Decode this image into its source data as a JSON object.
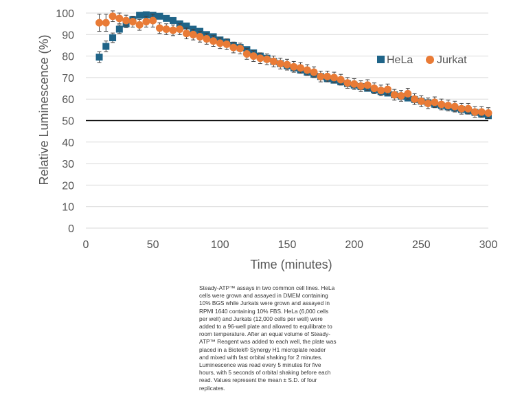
{
  "chart_data": {
    "type": "scatter",
    "title": "",
    "xlabel": "Time (minutes)",
    "ylabel": "Relative Luminescence (%)",
    "xlim": [
      0,
      300
    ],
    "ylim": [
      0,
      100
    ],
    "x_ticks": [
      0,
      50,
      100,
      150,
      200,
      250,
      300
    ],
    "y_ticks": [
      0,
      10,
      20,
      30,
      40,
      50,
      60,
      70,
      80,
      90,
      100
    ],
    "grid": "horizontal",
    "legend_position": "right",
    "reference_line": {
      "y": 50,
      "color": "#000000"
    },
    "series": [
      {
        "name": "HeLa",
        "marker": "square",
        "color": "#1f6488",
        "x": [
          10,
          15,
          20,
          25,
          30,
          35,
          40,
          45,
          50,
          55,
          60,
          65,
          70,
          75,
          80,
          85,
          90,
          95,
          100,
          105,
          110,
          115,
          120,
          125,
          130,
          135,
          140,
          145,
          150,
          155,
          160,
          165,
          170,
          175,
          180,
          185,
          190,
          195,
          200,
          205,
          210,
          215,
          220,
          225,
          230,
          235,
          240,
          245,
          250,
          255,
          260,
          265,
          270,
          275,
          280,
          285,
          290,
          295,
          300
        ],
        "y": [
          79.5,
          84.5,
          88.5,
          92.5,
          95,
          97,
          99,
          99.2,
          99,
          98.5,
          97.5,
          96.5,
          95,
          94,
          92.5,
          91.5,
          90,
          89,
          87.5,
          86.5,
          85,
          84,
          83,
          81.5,
          80,
          79,
          77.5,
          76.5,
          75.5,
          74.5,
          73.5,
          72.5,
          71.5,
          70.5,
          69.5,
          68.8,
          68,
          67.2,
          66.5,
          65.8,
          65,
          64.3,
          63.5,
          62.8,
          62,
          61.3,
          60.5,
          59.8,
          59,
          58.3,
          57.6,
          57,
          56.4,
          55.8,
          55.2,
          54.5,
          53.8,
          53,
          52.3
        ],
        "error": [
          2.5,
          2.5,
          2.2,
          2,
          1.8,
          1.5,
          1.3,
          1.2,
          1.2,
          1.2,
          1.2,
          1.3,
          1.3,
          1.3,
          1.3,
          1.3,
          1.3,
          1.3,
          1.3,
          1.3,
          1.3,
          1.3,
          1.3,
          1.3,
          1.3,
          1.3,
          1.3,
          1.3,
          1.3,
          1.3,
          1.3,
          1.3,
          1.3,
          1.3,
          1.3,
          1.3,
          1.3,
          1.3,
          1.3,
          1.3,
          1.3,
          1.3,
          1.3,
          1.3,
          1.3,
          1.3,
          1.3,
          1.3,
          1.3,
          1.3,
          1.3,
          1.3,
          1.3,
          1.3,
          1.3,
          1.3,
          1.3,
          1.3,
          1.3
        ]
      },
      {
        "name": "Jurkat",
        "marker": "circle",
        "color": "#e97b36",
        "x": [
          10,
          15,
          20,
          25,
          30,
          35,
          40,
          45,
          50,
          55,
          60,
          65,
          70,
          75,
          80,
          85,
          90,
          95,
          100,
          105,
          110,
          115,
          120,
          125,
          130,
          135,
          140,
          145,
          150,
          155,
          160,
          165,
          170,
          175,
          180,
          185,
          190,
          195,
          200,
          205,
          210,
          215,
          220,
          225,
          230,
          235,
          240,
          245,
          250,
          255,
          260,
          265,
          270,
          275,
          280,
          285,
          290,
          295,
          300
        ],
        "y": [
          95.5,
          95.5,
          98.5,
          97.5,
          96.5,
          96,
          94.5,
          96,
          96.5,
          93,
          92.5,
          92,
          92.5,
          90.5,
          90,
          89,
          88,
          87,
          86,
          85.5,
          84,
          83.5,
          81,
          80,
          79,
          78.5,
          77.5,
          76.5,
          76,
          75,
          74.5,
          73.5,
          72.5,
          70.5,
          70.5,
          70,
          69,
          67.5,
          67,
          66,
          66.5,
          65,
          64,
          64.5,
          62,
          61.5,
          62.5,
          60,
          59,
          58,
          58.5,
          57.5,
          57,
          56.5,
          55.5,
          55.5,
          54,
          54,
          53.5
        ],
        "error": [
          4,
          4,
          2.5,
          2.5,
          2.5,
          2.5,
          2.5,
          2.5,
          3,
          2.5,
          2.5,
          2.5,
          2.5,
          2.5,
          2.5,
          2.5,
          2.5,
          2.5,
          2.5,
          2.5,
          2.5,
          2.5,
          2.5,
          2.5,
          2.5,
          2.5,
          2.5,
          2.5,
          2.5,
          2.5,
          2.5,
          2.5,
          2.5,
          2.5,
          2.5,
          2.5,
          2.5,
          2.5,
          2.5,
          2.5,
          2.5,
          2.5,
          2.5,
          2.5,
          2.5,
          2.5,
          2.5,
          2.5,
          2.5,
          2.5,
          2.5,
          2.5,
          2.5,
          2.5,
          2.5,
          2.5,
          2.5,
          2.5,
          2.5
        ]
      }
    ]
  },
  "caption": {
    "lines": [
      "Steady-ATP™ assays in two common cell lines. HeLa",
      "cells were grown and assayed in DMEM containing",
      "10% BGS while Jurkats were grown and assayed in",
      "RPMI 1640 containing 10% FBS. HeLa (6,000 cells",
      "per well) and Jurkats (12,000 cells per well) were",
      "added to a 96-well plate and allowed to equilibrate to",
      "room temperature. After an equal volume of Steady-",
      "ATP™ Reagent was added to each well, the plate was",
      "placed in a Biotek® Synergy H1 microplate reader",
      "and mixed with fast orbital shaking for 2 minutes.",
      "Luminescence was read every 5 minutes for five",
      "hours, with 5 seconds of orbital shaking before each",
      "read. Values represent the mean ± S.D. of four",
      "replicates."
    ]
  }
}
